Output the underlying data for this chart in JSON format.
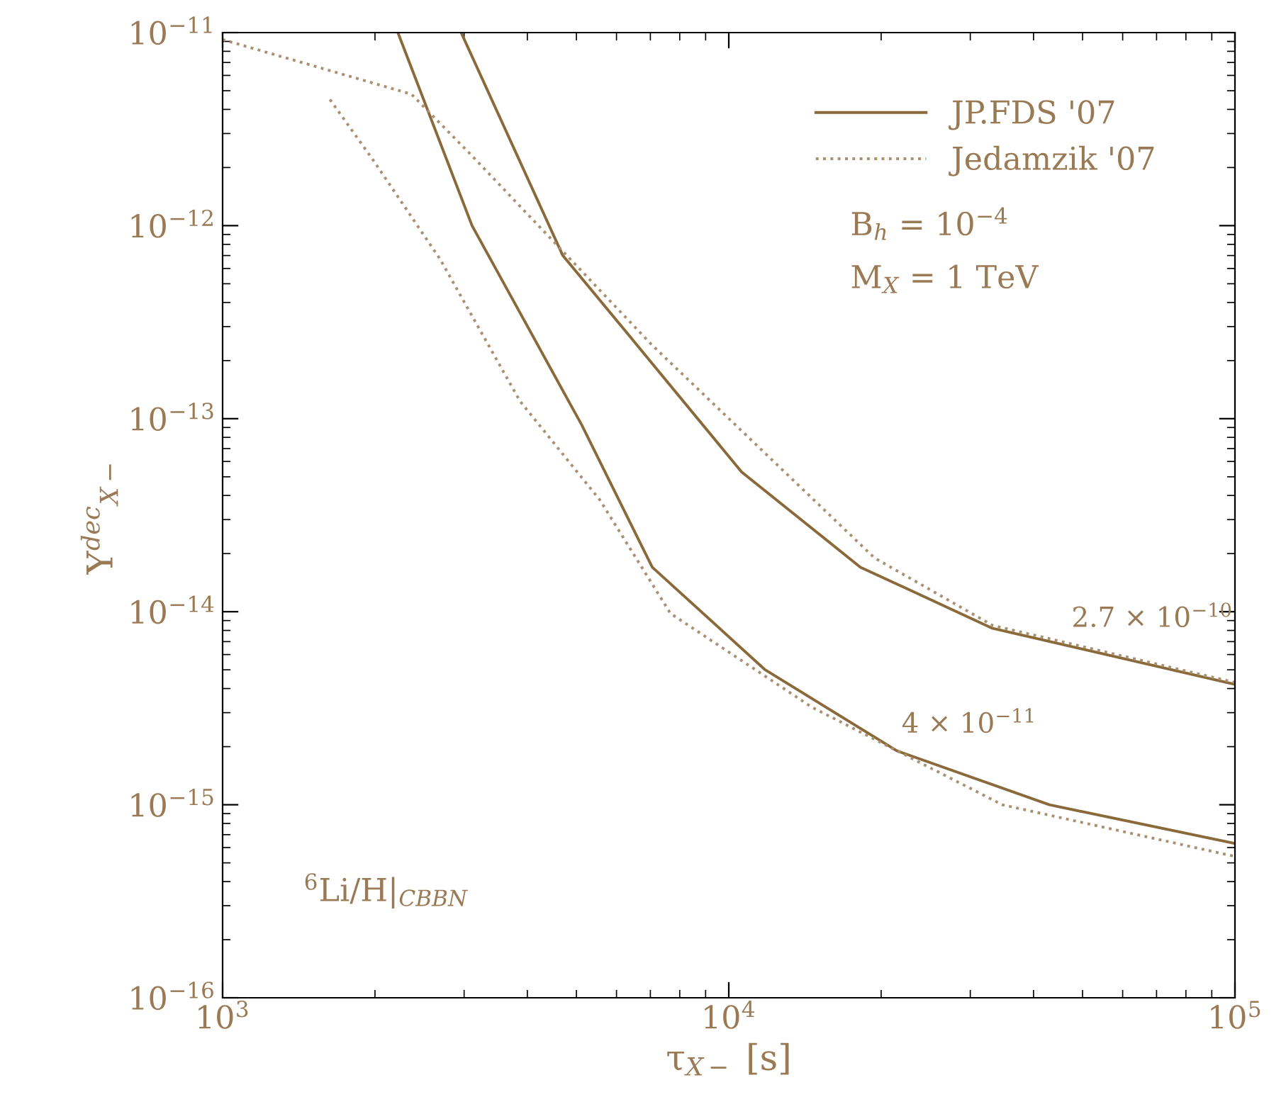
{
  "chart_data": {
    "type": "line",
    "xlabel": "τ$_{X−}$ [s]",
    "ylabel": "Y$^{dec}$$_{X−}$",
    "log": "xy",
    "grid": false,
    "legend": "top right",
    "xlim": [
      1000,
      100000
    ],
    "ylim": [
      1e-16,
      1e-11
    ],
    "xticks": [
      {
        "value": 1000,
        "label": "10$^{3}$"
      },
      {
        "value": 10000,
        "label": "10$^{4}$"
      },
      {
        "value": 100000,
        "label": "10$^{5}$"
      }
    ],
    "yticks": [
      {
        "value": 1e-16,
        "label": "10$^{−16}$"
      },
      {
        "value": 1e-15,
        "label": "10$^{−15}$"
      },
      {
        "value": 1e-14,
        "label": "10$^{−14}$"
      },
      {
        "value": 1e-13,
        "label": "10$^{−13}$"
      },
      {
        "value": 1e-12,
        "label": "10$^{−12}$"
      },
      {
        "value": 1e-11,
        "label": "10$^{−11}$"
      }
    ],
    "series": [
      {
        "name": "JP.FDS '07",
        "color": "#8a6a3a",
        "line_style": "solid",
        "x": [
          2220,
          3110,
          5120,
          7060,
          11800,
          21500,
          43000,
          100000
        ],
        "values": [
          1e-11,
          1e-12,
          9.3e-14,
          1.7e-14,
          5e-15,
          1.9e-15,
          1e-15,
          6.3e-16
        ]
      },
      {
        "color": "#8a6a3a",
        "line_style": "solid",
        "x": [
          2960,
          4700,
          6210,
          10600,
          18200,
          33200,
          100000
        ],
        "values": [
          1e-11,
          7e-13,
          2.9e-13,
          5.3e-14,
          1.7e-14,
          8.2e-15,
          4.2e-15
        ]
      },
      {
        "name": "Jedamzik '07",
        "color": "#a89070",
        "line_style": "dotted",
        "x": [
          1000,
          2360,
          3110,
          7060,
          19400,
          33200,
          100000
        ],
        "values": [
          9.2e-12,
          4.8e-12,
          2.3e-12,
          2.4e-13,
          1.9e-14,
          8.5e-15,
          4.3e-15
        ]
      },
      {
        "color": "#a89070",
        "line_style": "dotted",
        "x": [
          1630,
          1980,
          2690,
          3870,
          5560,
          7670,
          14600,
          34700,
          100000
        ],
        "values": [
          4.5e-12,
          2.2e-12,
          6.7e-13,
          1.23e-13,
          3.8e-14,
          9.8e-15,
          3.2e-15,
          1e-15,
          5.4e-16
        ]
      }
    ],
    "annotations": [
      "B$_{h}$ = 10$^{−4}$",
      "M$_{X}$ = 1 TeV",
      "$^{6}$Li/H|$_{CBBN}$",
      {
        "text": "2.7 × 10$^{−10}$",
        "x": 52000,
        "y": 6e-15
      },
      {
        "text": "4 × 10$^{−11}$",
        "x": 24000,
        "y": 1.7e-15
      }
    ]
  }
}
